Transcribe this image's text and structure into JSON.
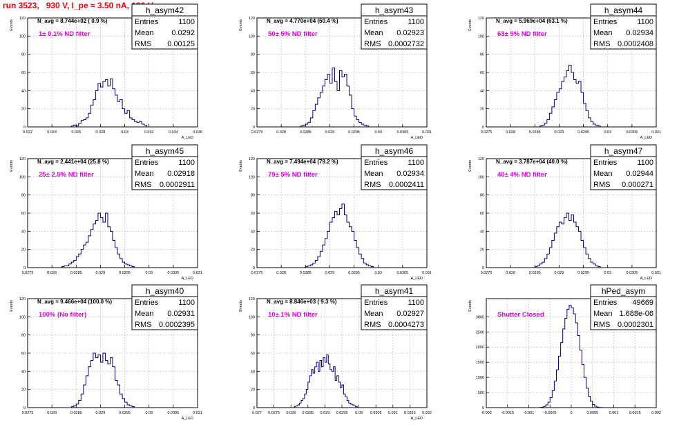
{
  "run_title": "run 3523,   930 V, I_pe ≈ 3.50 nA, 120 Hz",
  "colors": {
    "title": "#e8000b",
    "annotation": "#e000e0",
    "histogram": "#000080",
    "grid": "#b4b4b4",
    "frame": "#000000"
  },
  "chart_data": [
    {
      "type": "bar",
      "hist_name": "h_asym42",
      "nav_text": "N_avg = 8.744e+02 ( 0.9 %)",
      "filter_text": "1± 0.1% ND filter",
      "stats": [
        {
          "label": "Entries",
          "value": "1100"
        },
        {
          "label": "Mean",
          "value": "0.0292"
        },
        {
          "label": "RMS",
          "value": "0.00125"
        }
      ],
      "ylabel": "Events",
      "xlabel": "A_LED",
      "xlim": [
        0.022,
        0.036
      ],
      "ylim": [
        0,
        120
      ],
      "xticks": [
        0.022,
        0.024,
        0.026,
        0.028,
        0.03,
        0.032,
        0.034,
        0.036
      ],
      "xtick_labels": [
        "0.022",
        "0.024",
        "0.026",
        "0.028",
        "0.03",
        "0.032",
        "0.034",
        "0.036"
      ],
      "yticks": [
        0,
        20,
        40,
        60,
        80,
        100,
        120
      ],
      "ytick_labels": [
        "0",
        "20",
        "40",
        "60",
        "80",
        "100",
        "120"
      ],
      "bin_start": 0.0256,
      "bin_width": 0.0002,
      "values": [
        1,
        2,
        1,
        4,
        7,
        8,
        10,
        15,
        24,
        30,
        40,
        48,
        44,
        50,
        52,
        45,
        53,
        42,
        35,
        28,
        30,
        20,
        15,
        18,
        10,
        8,
        6,
        5,
        6,
        3,
        2
      ]
    },
    {
      "type": "bar",
      "hist_name": "h_asym43",
      "nav_text": "N_avg = 4.770e+04 (50.4 %)",
      "filter_text": "50± 5% ND filter",
      "stats": [
        {
          "label": "Entries",
          "value": "1100"
        },
        {
          "label": "Mean",
          "value": "0.02923"
        },
        {
          "label": "RMS",
          "value": "0.0002732"
        }
      ],
      "ylabel": "Events",
      "xlabel": "A_LED",
      "xlim": [
        0.0275,
        0.031
      ],
      "ylim": [
        0,
        120
      ],
      "xticks": [
        0.0275,
        0.028,
        0.0285,
        0.029,
        0.0295,
        0.03,
        0.0305,
        0.031
      ],
      "xtick_labels": [
        "0.0275",
        "0.028",
        "0.0285",
        "0.029",
        "0.0295",
        "0.03",
        "0.0305",
        "0.031"
      ],
      "yticks": [
        0,
        20,
        40,
        60,
        80,
        100,
        120
      ],
      "ytick_labels": [
        "0",
        "20",
        "40",
        "60",
        "80",
        "100",
        "120"
      ],
      "bin_start": 0.0284,
      "bin_width": 5e-05,
      "values": [
        1,
        2,
        3,
        5,
        10,
        18,
        25,
        32,
        38,
        45,
        52,
        58,
        48,
        65,
        50,
        40,
        62,
        55,
        58,
        45,
        35,
        20,
        12,
        8,
        5,
        3,
        2,
        1
      ]
    },
    {
      "type": "bar",
      "hist_name": "h_asym44",
      "nav_text": "N_avg = 5.969e+04 (63.1 %)",
      "filter_text": "63± 5% ND filter",
      "stats": [
        {
          "label": "Entries",
          "value": "1100"
        },
        {
          "label": "Mean",
          "value": "0.02934"
        },
        {
          "label": "RMS",
          "value": "0.0002408"
        }
      ],
      "ylabel": "Events",
      "xlabel": "A_LED",
      "xlim": [
        0.0275,
        0.031
      ],
      "ylim": [
        0,
        120
      ],
      "xticks": [
        0.0275,
        0.028,
        0.0285,
        0.029,
        0.0295,
        0.03,
        0.0305,
        0.031
      ],
      "xtick_labels": [
        "0.0275",
        "0.028",
        "0.0285",
        "0.029",
        "0.0295",
        "0.03",
        "0.0305",
        "0.031"
      ],
      "yticks": [
        0,
        20,
        40,
        60,
        80,
        100,
        120
      ],
      "ytick_labels": [
        "0",
        "20",
        "40",
        "60",
        "80",
        "100",
        "120"
      ],
      "bin_start": 0.0286,
      "bin_width": 5e-05,
      "values": [
        1,
        2,
        4,
        8,
        15,
        22,
        30,
        38,
        42,
        50,
        55,
        62,
        68,
        60,
        52,
        48,
        50,
        38,
        26,
        18,
        10,
        6,
        3,
        2,
        1
      ]
    },
    {
      "type": "bar",
      "hist_name": "h_asym45",
      "nav_text": "N_avg = 2.441e+04 (25.8 %)",
      "filter_text": "25± 2.5% ND filter",
      "stats": [
        {
          "label": "Entries",
          "value": "1100"
        },
        {
          "label": "Mean",
          "value": "0.02918"
        },
        {
          "label": "RMS",
          "value": "0.0002911"
        }
      ],
      "ylabel": "Events",
      "xlabel": "A_LED",
      "xlim": [
        0.0275,
        0.031
      ],
      "ylim": [
        0,
        120
      ],
      "xticks": [
        0.0275,
        0.028,
        0.0285,
        0.029,
        0.0295,
        0.03,
        0.0305,
        0.031
      ],
      "xtick_labels": [
        "0.0275",
        "0.028",
        "0.0285",
        "0.029",
        "0.0295",
        "0.03",
        "0.0305",
        "0.031"
      ],
      "yticks": [
        0,
        20,
        40,
        60,
        80,
        100,
        120
      ],
      "ytick_labels": [
        "0",
        "20",
        "40",
        "60",
        "80",
        "100",
        "120"
      ],
      "bin_start": 0.0282,
      "bin_width": 5e-05,
      "values": [
        1,
        2,
        2,
        4,
        6,
        8,
        12,
        15,
        20,
        25,
        28,
        35,
        42,
        48,
        52,
        60,
        55,
        50,
        60,
        45,
        40,
        30,
        22,
        15,
        10,
        6,
        4,
        3,
        2,
        1
      ]
    },
    {
      "type": "bar",
      "hist_name": "h_asym46",
      "nav_text": "N_avg = 7.494e+04 (79.2 %)",
      "filter_text": "79± 5% ND filter",
      "stats": [
        {
          "label": "Entries",
          "value": "1100"
        },
        {
          "label": "Mean",
          "value": "0.02934"
        },
        {
          "label": "RMS",
          "value": "0.0002411"
        }
      ],
      "ylabel": "Events",
      "xlabel": "A_LED",
      "xlim": [
        0.0275,
        0.031
      ],
      "ylim": [
        0,
        120
      ],
      "xticks": [
        0.0275,
        0.028,
        0.0285,
        0.029,
        0.0295,
        0.03,
        0.0305,
        0.031
      ],
      "xtick_labels": [
        "0.0275",
        "0.028",
        "0.0285",
        "0.029",
        "0.0295",
        "0.03",
        "0.0305",
        "0.031"
      ],
      "yticks": [
        0,
        20,
        40,
        60,
        80,
        100,
        120
      ],
      "ytick_labels": [
        "0",
        "20",
        "40",
        "60",
        "80",
        "100",
        "120"
      ],
      "bin_start": 0.0285,
      "bin_width": 5e-05,
      "values": [
        1,
        2,
        3,
        5,
        8,
        12,
        18,
        25,
        32,
        40,
        50,
        55,
        62,
        58,
        65,
        70,
        58,
        50,
        45,
        40,
        30,
        22,
        15,
        10,
        5,
        3,
        2,
        1
      ]
    },
    {
      "type": "bar",
      "hist_name": "h_asym47",
      "nav_text": "N_avg = 3.787e+04 (40.0 %)",
      "filter_text": "40± 4% ND filter",
      "stats": [
        {
          "label": "Entries",
          "value": "1100"
        },
        {
          "label": "Mean",
          "value": "0.02944"
        },
        {
          "label": "RMS",
          "value": "0.000271"
        }
      ],
      "ylabel": "Events",
      "xlabel": "A_LED",
      "xlim": [
        0.0275,
        0.031
      ],
      "ylim": [
        0,
        120
      ],
      "xticks": [
        0.0275,
        0.028,
        0.0285,
        0.029,
        0.0295,
        0.03,
        0.0305,
        0.031
      ],
      "xtick_labels": [
        "0.0275",
        "0.028",
        "0.0285",
        "0.029",
        "0.0295",
        "0.03",
        "0.0305",
        "0.031"
      ],
      "yticks": [
        0,
        20,
        40,
        60,
        80,
        100,
        120
      ],
      "ytick_labels": [
        "0",
        "20",
        "40",
        "60",
        "80",
        "100",
        "120"
      ],
      "bin_start": 0.0285,
      "bin_width": 5e-05,
      "values": [
        1,
        2,
        4,
        6,
        10,
        15,
        22,
        30,
        38,
        45,
        50,
        48,
        55,
        60,
        52,
        58,
        50,
        45,
        40,
        30,
        22,
        15,
        10,
        6,
        4,
        2,
        1
      ]
    },
    {
      "type": "bar",
      "hist_name": "h_asym40",
      "nav_text": "N_avg = 9.466e+04 (100.0 %)",
      "filter_text": "100% (No filter)",
      "stats": [
        {
          "label": "Entries",
          "value": "1100"
        },
        {
          "label": "Mean",
          "value": "0.02931"
        },
        {
          "label": "RMS",
          "value": "0.0002395"
        }
      ],
      "ylabel": "Events",
      "xlabel": "A_LED",
      "xlim": [
        0.0275,
        0.031
      ],
      "ylim": [
        0,
        120
      ],
      "xticks": [
        0.0275,
        0.028,
        0.0285,
        0.029,
        0.0295,
        0.03,
        0.0305,
        0.031
      ],
      "xtick_labels": [
        "0.0275",
        "0.028",
        "0.0285",
        "0.029",
        "0.0295",
        "0.03",
        "0.0305",
        "0.031"
      ],
      "yticks": [
        0,
        20,
        40,
        60,
        80,
        100,
        120
      ],
      "ytick_labels": [
        "0",
        "20",
        "40",
        "60",
        "80",
        "100",
        "120"
      ],
      "bin_start": 0.0284,
      "bin_width": 5e-05,
      "values": [
        1,
        2,
        4,
        8,
        15,
        25,
        35,
        45,
        52,
        60,
        55,
        58,
        50,
        60,
        52,
        48,
        55,
        45,
        30,
        25,
        15,
        10,
        6,
        3,
        2,
        1
      ]
    },
    {
      "type": "bar",
      "hist_name": "h_asym41",
      "nav_text": "N_avg = 8.846e+03 ( 9.3 %)",
      "filter_text": "10± 1% ND filter",
      "stats": [
        {
          "label": "Entries",
          "value": "1100"
        },
        {
          "label": "Mean",
          "value": "0.02927"
        },
        {
          "label": "RMS",
          "value": "0.0004273"
        }
      ],
      "ylabel": "Events",
      "xlabel": "A_LED",
      "xlim": [
        0.027,
        0.032
      ],
      "ylim": [
        0,
        120
      ],
      "xticks": [
        0.027,
        0.0275,
        0.028,
        0.0285,
        0.029,
        0.0295,
        0.03,
        0.0305,
        0.031,
        0.0315,
        0.032
      ],
      "xtick_labels": [
        "0.027",
        "0.0275",
        "0.028",
        "0.0285",
        "0.029",
        "0.0295",
        "0.03",
        "0.0305",
        "0.031",
        "0.0315",
        "0.032"
      ],
      "yticks": [
        0,
        20,
        40,
        60,
        80,
        100,
        120
      ],
      "ytick_labels": [
        "0",
        "20",
        "40",
        "60",
        "80",
        "100",
        "120"
      ],
      "bin_start": 0.0281,
      "bin_width": 5e-05,
      "values": [
        1,
        2,
        3,
        5,
        8,
        10,
        15,
        20,
        28,
        35,
        42,
        38,
        45,
        50,
        40,
        52,
        45,
        55,
        50,
        58,
        48,
        42,
        40,
        45,
        30,
        35,
        28,
        22,
        25,
        15,
        12,
        8,
        5,
        4,
        3,
        2,
        1
      ]
    },
    {
      "type": "bar",
      "hist_name": "hPed_asym",
      "nav_text": "",
      "filter_text": "Shutter Closed",
      "stats": [
        {
          "label": "Entries",
          "value": "49669"
        },
        {
          "label": "Mean",
          "value": "1.688e-06"
        },
        {
          "label": "RMS",
          "value": "0.0002301"
        }
      ],
      "ylabel": "Events",
      "xlabel": "",
      "xlim": [
        -0.002,
        0.002
      ],
      "ylim": [
        0,
        3600
      ],
      "xticks": [
        -0.002,
        -0.0015,
        -0.001,
        -0.0005,
        0,
        0.0005,
        0.001,
        0.0015,
        0.002
      ],
      "xtick_labels": [
        "-0.002",
        "-0.0015",
        "-0.001",
        "-0.0005",
        "0",
        "0.0005",
        "0.001",
        "0.0015",
        "0.002"
      ],
      "yticks": [
        0,
        500,
        1000,
        1500,
        2000,
        2500,
        3000
      ],
      "ytick_labels": [
        "0",
        "500",
        "1000",
        "1500",
        "2000",
        "2500",
        "3000"
      ],
      "bin_start": -0.00075,
      "bin_width": 5e-05,
      "values": [
        5,
        15,
        40,
        90,
        180,
        330,
        560,
        880,
        1250,
        1700,
        2150,
        2600,
        2950,
        3250,
        3380,
        3300,
        3100,
        2800,
        2380,
        1900,
        1420,
        1000,
        640,
        380,
        210,
        100,
        45,
        18,
        6,
        2
      ]
    }
  ]
}
